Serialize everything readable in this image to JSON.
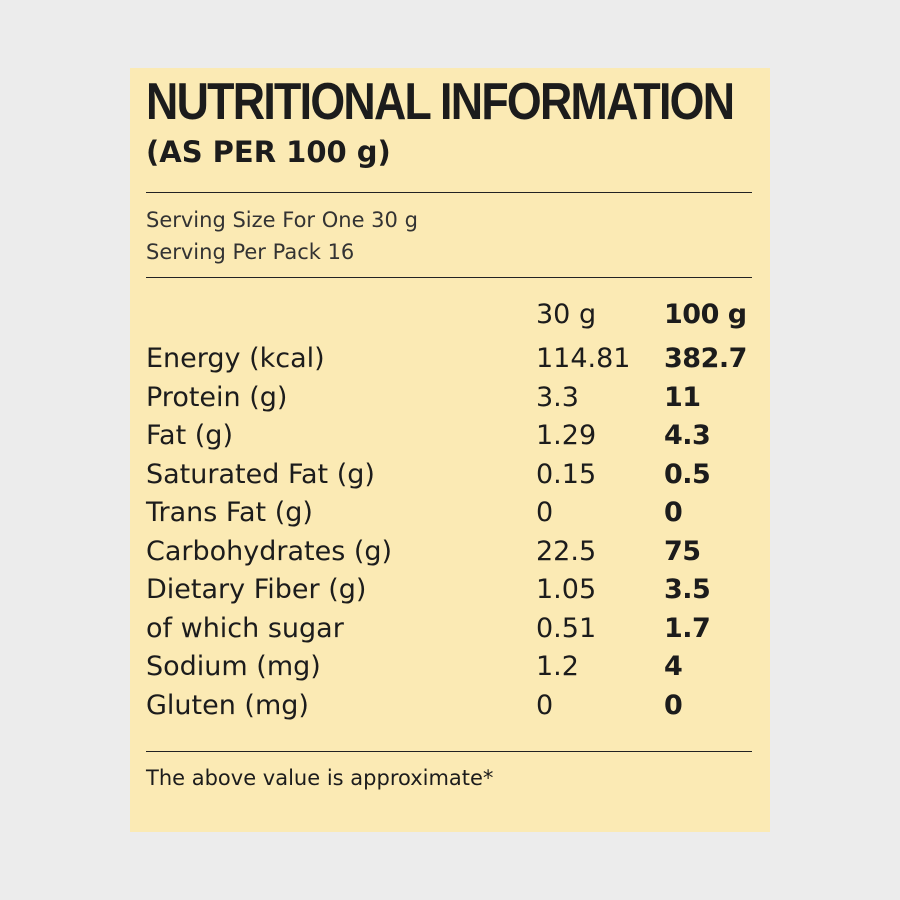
{
  "title": "NUTRITIONAL INFORMATION",
  "subtitle": "(AS PER 100 g)",
  "serving": {
    "size": "Serving Size For One 30 g",
    "per_pack": "Serving Per Pack 16"
  },
  "table": {
    "columns": [
      "30 g",
      "100 g"
    ],
    "rows": [
      {
        "name": "Energy (kcal)",
        "per_30g": "114.81",
        "per_100g": "382.7"
      },
      {
        "name": "Protein (g)",
        "per_30g": "3.3",
        "per_100g": "11"
      },
      {
        "name": "Fat (g)",
        "per_30g": "1.29",
        "per_100g": "4.3"
      },
      {
        "name": "Saturated Fat (g)",
        "per_30g": "0.15",
        "per_100g": "0.5"
      },
      {
        "name": "Trans Fat (g)",
        "per_30g": "0",
        "per_100g": "0"
      },
      {
        "name": "Carbohydrates (g)",
        "per_30g": "22.5",
        "per_100g": "75"
      },
      {
        "name": "Dietary Fiber (g)",
        "per_30g": "1.05",
        "per_100g": "3.5"
      },
      {
        "name": "of which sugar",
        "per_30g": "0.51",
        "per_100g": "1.7"
      },
      {
        "name": "Sodium (mg)",
        "per_30g": "1.2",
        "per_100g": "4"
      },
      {
        "name": "Gluten (mg)",
        "per_30g": "0",
        "per_100g": "0"
      }
    ]
  },
  "footnote": "The above value is approximate*",
  "colors": {
    "page_background": "#ececec",
    "panel_background": "#fbeab4",
    "text": "#1c1c1c"
  }
}
